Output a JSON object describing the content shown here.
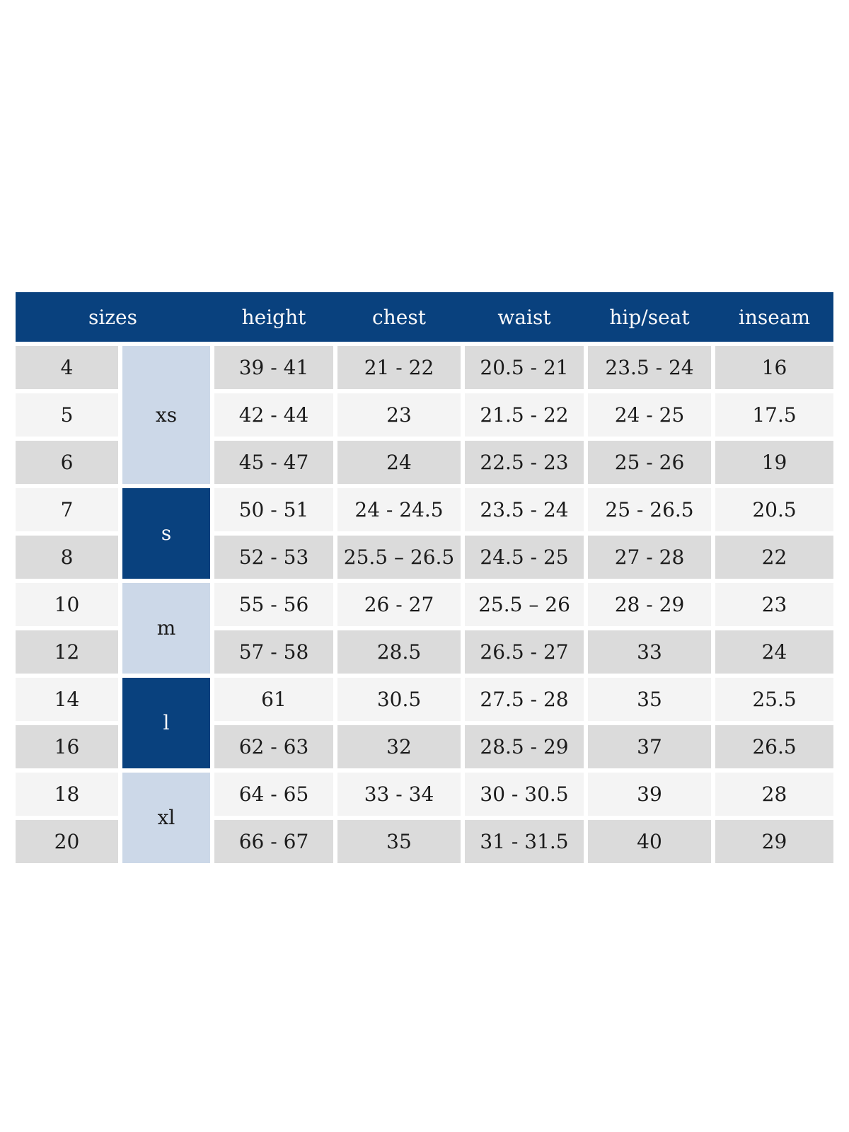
{
  "colors": {
    "header_bg": "#09417e",
    "header_text": "#f8f8fa",
    "group_light_bg": "#ccd8e8",
    "group_dark_bg": "#09417e",
    "row_gray_bg": "#dbdbdb",
    "row_light_bg": "#f4f4f4",
    "body_text": "#1b1b1b",
    "page_bg": "#ffffff"
  },
  "chart_data": {
    "type": "table",
    "title": "",
    "columns": [
      "sizes",
      "height",
      "chest",
      "waist",
      "hip/seat",
      "inseam"
    ],
    "size_groups": [
      {
        "label": "xs",
        "sizes": [
          "4",
          "5",
          "6"
        ],
        "style": "light"
      },
      {
        "label": "s",
        "sizes": [
          "7",
          "8"
        ],
        "style": "dark"
      },
      {
        "label": "m",
        "sizes": [
          "10",
          "12"
        ],
        "style": "light"
      },
      {
        "label": "l",
        "sizes": [
          "14",
          "16"
        ],
        "style": "dark"
      },
      {
        "label": "xl",
        "sizes": [
          "18",
          "20"
        ],
        "style": "light"
      }
    ],
    "rows": [
      {
        "size": "4",
        "height": "39 - 41",
        "chest": "21 - 22",
        "waist": "20.5 - 21",
        "hip_seat": "23.5 - 24",
        "inseam": "16"
      },
      {
        "size": "5",
        "height": "42 - 44",
        "chest": "23",
        "waist": "21.5 - 22",
        "hip_seat": "24 - 25",
        "inseam": "17.5"
      },
      {
        "size": "6",
        "height": "45 - 47",
        "chest": "24",
        "waist": "22.5 - 23",
        "hip_seat": "25 - 26",
        "inseam": "19"
      },
      {
        "size": "7",
        "height": "50 - 51",
        "chest": "24 - 24.5",
        "waist": "23.5 - 24",
        "hip_seat": "25 - 26.5",
        "inseam": "20.5"
      },
      {
        "size": "8",
        "height": "52 - 53",
        "chest": "25.5 – 26.5",
        "waist": "24.5 - 25",
        "hip_seat": "27 - 28",
        "inseam": "22"
      },
      {
        "size": "10",
        "height": "55 - 56",
        "chest": "26 - 27",
        "waist": "25.5 – 26",
        "hip_seat": "28 - 29",
        "inseam": "23"
      },
      {
        "size": "12",
        "height": "57 - 58",
        "chest": "28.5",
        "waist": "26.5 - 27",
        "hip_seat": "33",
        "inseam": "24"
      },
      {
        "size": "14",
        "height": "61",
        "chest": "30.5",
        "waist": "27.5 - 28",
        "hip_seat": "35",
        "inseam": "25.5"
      },
      {
        "size": "16",
        "height": "62 - 63",
        "chest": "32",
        "waist": "28.5 - 29",
        "hip_seat": "37",
        "inseam": "26.5"
      },
      {
        "size": "18",
        "height": "64 - 65",
        "chest": "33 - 34",
        "waist": "30 - 30.5",
        "hip_seat": "39",
        "inseam": "28"
      },
      {
        "size": "20",
        "height": "66 - 67",
        "chest": "35",
        "waist": "31 - 31.5",
        "hip_seat": "40",
        "inseam": "29"
      }
    ]
  }
}
